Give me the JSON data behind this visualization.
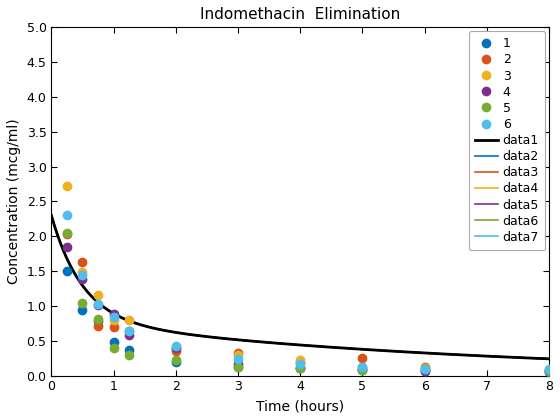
{
  "title": "Indomethacin  Elimination",
  "xlabel": "Time (hours)",
  "ylabel": "Concentration (mcg/ml)",
  "xlim": [
    0,
    8
  ],
  "ylim": [
    0,
    5
  ],
  "xticks": [
    0,
    1,
    2,
    3,
    4,
    5,
    6,
    7,
    8
  ],
  "yticks": [
    0,
    0.5,
    1.0,
    1.5,
    2.0,
    2.5,
    3.0,
    3.5,
    4.0,
    4.5,
    5.0
  ],
  "scatter": {
    "time": [
      0.25,
      0.5,
      0.75,
      1.0,
      1.25,
      2.0,
      3.0,
      4.0,
      5.0,
      6.0,
      8.0
    ],
    "subjects": [
      [
        1.5,
        0.94,
        0.78,
        0.48,
        0.37,
        0.19,
        0.12,
        0.11,
        0.08,
        0.07,
        0.05
      ],
      [
        2.03,
        1.63,
        0.71,
        0.7,
        0.64,
        0.36,
        0.32,
        0.2,
        0.25,
        0.12,
        0.08
      ],
      [
        2.72,
        1.49,
        1.16,
        0.8,
        0.8,
        0.39,
        0.3,
        0.23,
        0.13,
        0.11,
        0.08
      ],
      [
        1.85,
        1.39,
        1.02,
        0.89,
        0.59,
        0.4,
        0.16,
        0.11,
        0.1,
        0.07,
        0.07
      ],
      [
        2.05,
        1.04,
        0.81,
        0.39,
        0.3,
        0.23,
        0.13,
        0.11,
        0.08,
        0.1,
        0.06
      ],
      [
        2.31,
        1.44,
        1.03,
        0.84,
        0.64,
        0.42,
        0.24,
        0.17,
        0.13,
        0.1,
        0.09
      ]
    ],
    "colors": [
      "#0072BD",
      "#D95319",
      "#EDB120",
      "#7E2F8E",
      "#77AC30",
      "#4DBEEE"
    ],
    "markersize": 6
  },
  "curves": {
    "colors": [
      "#000000",
      "#0072BD",
      "#D95319",
      "#EDB120",
      "#7E2F8E",
      "#77AC30",
      "#4DBEEE"
    ],
    "linewidths": [
      2.0,
      1.2,
      1.2,
      1.2,
      1.2,
      1.2,
      1.2
    ],
    "labels": [
      "data1",
      "data2",
      "data3",
      "data4",
      "data5",
      "data6",
      "data7"
    ]
  },
  "scatter_labels": [
    "1",
    "2",
    "3",
    "4",
    "5",
    "6"
  ],
  "legend_fontsize": 9,
  "title_fontsize": 11,
  "axis_fontsize": 10,
  "tick_fontsize": 9,
  "figsize": [
    5.6,
    4.2
  ],
  "dpi": 100
}
